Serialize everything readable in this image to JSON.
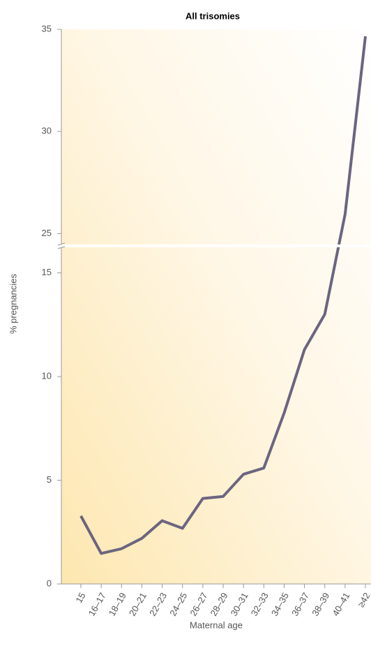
{
  "chart_data": {
    "type": "line",
    "title": "All trisomies",
    "x_label": "Maternal age",
    "y_label": "% pregnancies",
    "categories": [
      "15",
      "16–17",
      "18–19",
      "20–21",
      "22–23",
      "24–25",
      "26–27",
      "28–29",
      "30–31",
      "32–33",
      "34–35",
      "36–37",
      "38–39",
      "40–41",
      "≥42"
    ],
    "series": [
      {
        "name": "All trisomies",
        "color": "#6b6580",
        "values": [
          3.28,
          1.47,
          1.7,
          2.2,
          3.05,
          2.68,
          4.12,
          4.22,
          5.29,
          5.59,
          8.24,
          11.3,
          13.0,
          25.95,
          34.66
        ]
      }
    ],
    "ylim": [
      0,
      35
    ],
    "axis_break": [
      16.2,
      24.5
    ],
    "yticks": [
      0,
      5,
      10,
      15,
      25,
      30,
      35
    ]
  }
}
